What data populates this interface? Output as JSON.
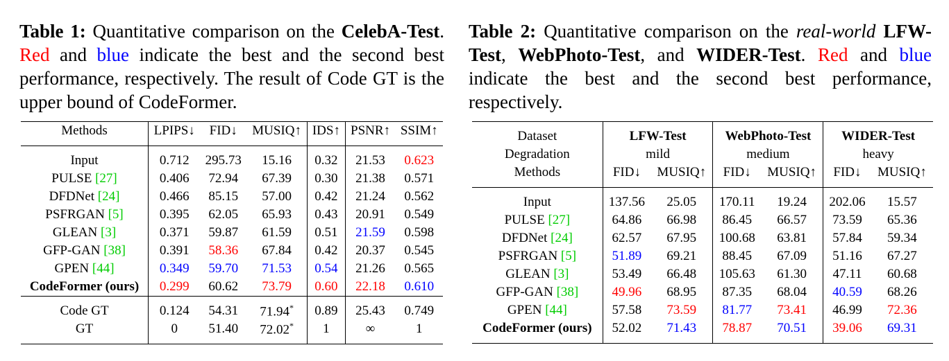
{
  "table1": {
    "caption": [
      {
        "text": "Table 1:",
        "bold": true
      },
      " Quantitative comparison on the ",
      {
        "text": "CelebA-Test",
        "bold": true
      },
      ". ",
      {
        "text": "Red",
        "color": "#ff0000"
      },
      " and ",
      {
        "text": "blue",
        "color": "#0000ff"
      },
      " indicate the best and the second best performance, respectively. The result of Code GT is the upper bound of CodeFormer."
    ],
    "header": [
      "Methods",
      "LPIPS↓",
      "FID↓",
      "MUSIQ↑",
      "IDS↑",
      "PSNR↑",
      "SSIM↑"
    ],
    "groups": [
      [
        [
          "Input",
          "0.712",
          "295.73",
          "15.16",
          "0.32",
          "21.53",
          {
            "text": "0.623",
            "color": "#ff0000"
          }
        ],
        [
          [
            "PULSE ",
            {
              "text": "[27]",
              "color": "#00cc00"
            }
          ],
          "0.406",
          "72.94",
          "67.39",
          "0.30",
          "21.38",
          "0.571"
        ],
        [
          [
            "DFDNet ",
            {
              "text": "[24]",
              "color": "#00cc00"
            }
          ],
          "0.466",
          "85.15",
          "57.00",
          "0.42",
          "21.24",
          "0.562"
        ],
        [
          [
            "PSFRGAN ",
            {
              "text": "[5]",
              "color": "#00cc00"
            }
          ],
          "0.395",
          "62.05",
          "65.93",
          "0.43",
          "20.91",
          "0.549"
        ],
        [
          [
            "GLEAN ",
            {
              "text": "[3]",
              "color": "#00cc00"
            }
          ],
          "0.371",
          "59.87",
          "61.59",
          "0.51",
          {
            "text": "21.59",
            "color": "#0000ff"
          },
          "0.598"
        ],
        [
          [
            "GFP-GAN ",
            {
              "text": "[38]",
              "color": "#00cc00"
            }
          ],
          "0.391",
          {
            "text": "58.36",
            "color": "#ff0000"
          },
          "67.84",
          "0.42",
          "20.37",
          "0.545"
        ],
        [
          [
            "GPEN ",
            {
              "text": "[44]",
              "color": "#00cc00"
            }
          ],
          {
            "text": "0.349",
            "color": "#0000ff"
          },
          {
            "text": "59.70",
            "color": "#0000ff"
          },
          {
            "text": "71.53",
            "color": "#0000ff"
          },
          {
            "text": "0.54",
            "color": "#0000ff"
          },
          "21.26",
          "0.565"
        ],
        [
          {
            "text": "CodeFormer (ours)",
            "bold": true
          },
          {
            "text": "0.299",
            "color": "#ff0000"
          },
          "60.62",
          {
            "text": "73.79",
            "color": "#ff0000"
          },
          {
            "text": "0.60",
            "color": "#ff0000"
          },
          {
            "text": "22.18",
            "color": "#ff0000"
          },
          {
            "text": "0.610",
            "color": "#0000ff"
          }
        ]
      ],
      [
        [
          "Code GT",
          "0.124",
          "54.31",
          [
            "71.94",
            {
              "text": "*",
              "sup": true
            }
          ],
          "0.89",
          "25.43",
          "0.749"
        ],
        [
          "GT",
          "0",
          "51.40",
          [
            "72.02",
            {
              "text": "*",
              "sup": true
            }
          ],
          "1",
          "∞",
          "1"
        ]
      ]
    ]
  },
  "table2": {
    "caption": [
      {
        "text": "Table 2:",
        "bold": true
      },
      " Quantitative comparison on the ",
      {
        "text": "real-world",
        "italic": true
      },
      " ",
      {
        "text": "LFW-Test",
        "bold": true
      },
      ", ",
      {
        "text": "WebPhoto-Test",
        "bold": true
      },
      ", and ",
      {
        "text": "WIDER-Test",
        "bold": true
      },
      ". ",
      {
        "text": "Red",
        "color": "#ff0000"
      },
      " and ",
      {
        "text": "blue",
        "color": "#0000ff"
      },
      " indicate the best and the second best performance, respectively."
    ],
    "header_rows": [
      [
        "Dataset",
        {
          "text": "LFW-Test",
          "bold": true
        },
        {
          "text": "WebPhoto-Test",
          "bold": true
        },
        {
          "text": "WIDER-Test",
          "bold": true
        }
      ],
      [
        "Degradation",
        "mild",
        "medium",
        "heavy"
      ],
      [
        "Methods",
        "FID↓",
        "MUSIQ↑",
        "FID↓",
        "MUSIQ↑",
        "FID↓",
        "MUSIQ↑"
      ]
    ],
    "rows": [
      [
        "Input",
        "137.56",
        "25.05",
        "170.11",
        "19.24",
        "202.06",
        "15.57"
      ],
      [
        [
          "PULSE ",
          {
            "text": "[27]",
            "color": "#00cc00"
          }
        ],
        "64.86",
        "66.98",
        "86.45",
        "66.57",
        "73.59",
        "65.36"
      ],
      [
        [
          "DFDNet ",
          {
            "text": "[24]",
            "color": "#00cc00"
          }
        ],
        "62.57",
        "67.95",
        "100.68",
        "63.81",
        "57.84",
        "59.34"
      ],
      [
        [
          "PSFRGAN ",
          {
            "text": "[5]",
            "color": "#00cc00"
          }
        ],
        {
          "text": "51.89",
          "color": "#0000ff"
        },
        "69.21",
        "88.45",
        "67.09",
        "51.16",
        "67.27"
      ],
      [
        [
          "GLEAN ",
          {
            "text": "[3]",
            "color": "#00cc00"
          }
        ],
        "53.49",
        "66.48",
        "105.63",
        "61.30",
        "47.11",
        "60.68"
      ],
      [
        [
          "GFP-GAN ",
          {
            "text": "[38]",
            "color": "#00cc00"
          }
        ],
        {
          "text": "49.96",
          "color": "#ff0000"
        },
        "68.95",
        "87.35",
        "68.04",
        {
          "text": "40.59",
          "color": "#0000ff"
        },
        "68.26"
      ],
      [
        [
          "GPEN ",
          {
            "text": "[44]",
            "color": "#00cc00"
          }
        ],
        "57.58",
        {
          "text": "73.59",
          "color": "#ff0000"
        },
        {
          "text": "81.77",
          "color": "#0000ff"
        },
        {
          "text": "73.41",
          "color": "#ff0000"
        },
        "46.99",
        {
          "text": "72.36",
          "color": "#ff0000"
        }
      ],
      [
        {
          "text": "CodeFormer (ours)",
          "bold": true
        },
        "52.02",
        {
          "text": "71.43",
          "color": "#0000ff"
        },
        {
          "text": "78.87",
          "color": "#ff0000"
        },
        {
          "text": "70.51",
          "color": "#0000ff"
        },
        {
          "text": "39.06",
          "color": "#ff0000"
        },
        {
          "text": "69.31",
          "color": "#0000ff"
        }
      ]
    ]
  }
}
